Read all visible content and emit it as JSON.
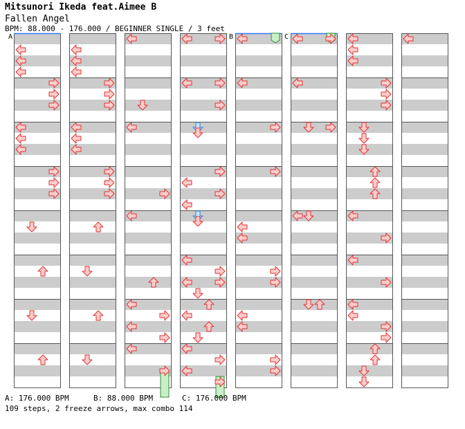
{
  "header": {
    "artist": "Mitsunori Ikeda feat.Aimee B",
    "title": "Fallen Angel",
    "info": "BPM: 88.000 - 176.000 / BEGINNER SINGLE / 3 feet"
  },
  "markers": [
    "A",
    "B",
    "C"
  ],
  "footer": {
    "bpm_a": "A: 176.000 BPM",
    "bpm_b": "B: 88.000 BPM",
    "bpm_c": "C: 176.000 BPM",
    "summary": "109 steps, 2 freeze arrows, max combo 114"
  },
  "colors": {
    "stripe_dark": "#cccccc",
    "arrow_red_fill": "#ffcccc",
    "arrow_red_stroke": "#dd3333",
    "arrow_blue_fill": "#cce4ff",
    "arrow_blue_stroke": "#2f7fdd",
    "freeze_fill": "#c8f0c8",
    "freeze_stroke": "#338833",
    "bpm_line": "#3377ff"
  },
  "chart_data": {
    "type": "step-chart",
    "measures_per_column": 8,
    "columns": 8,
    "arrows_note": "each arrow: measure index, beat position (0-4), lane (L,D,U,R), color",
    "arrows": [
      {
        "m": 0,
        "b": 1,
        "lane": "L"
      },
      {
        "m": 0,
        "b": 2,
        "lane": "L"
      },
      {
        "m": 0,
        "b": 3,
        "lane": "L"
      },
      {
        "m": 1,
        "b": 0,
        "lane": "R"
      },
      {
        "m": 1,
        "b": 1,
        "lane": "R"
      },
      {
        "m": 1,
        "b": 2,
        "lane": "R"
      },
      {
        "m": 2,
        "b": 0,
        "lane": "L"
      },
      {
        "m": 2,
        "b": 1,
        "lane": "L"
      },
      {
        "m": 2,
        "b": 2,
        "lane": "L"
      },
      {
        "m": 3,
        "b": 0,
        "lane": "R"
      },
      {
        "m": 3,
        "b": 1,
        "lane": "R"
      },
      {
        "m": 3,
        "b": 2,
        "lane": "R"
      },
      {
        "m": 4,
        "b": 1,
        "lane": "D"
      },
      {
        "m": 5,
        "b": 1,
        "lane": "U"
      },
      {
        "m": 6,
        "b": 1,
        "lane": "D"
      },
      {
        "m": 7,
        "b": 1,
        "lane": "U"
      },
      {
        "m": 8,
        "b": 1,
        "lane": "L"
      },
      {
        "m": 8,
        "b": 2,
        "lane": "L"
      },
      {
        "m": 8,
        "b": 3,
        "lane": "L"
      },
      {
        "m": 9,
        "b": 0,
        "lane": "R"
      },
      {
        "m": 9,
        "b": 1,
        "lane": "R"
      },
      {
        "m": 9,
        "b": 2,
        "lane": "R"
      },
      {
        "m": 10,
        "b": 0,
        "lane": "L"
      },
      {
        "m": 10,
        "b": 1,
        "lane": "L"
      },
      {
        "m": 10,
        "b": 2,
        "lane": "L"
      },
      {
        "m": 11,
        "b": 0,
        "lane": "R"
      },
      {
        "m": 11,
        "b": 1,
        "lane": "R"
      },
      {
        "m": 11,
        "b": 2,
        "lane": "R"
      },
      {
        "m": 12,
        "b": 1,
        "lane": "U"
      },
      {
        "m": 13,
        "b": 1,
        "lane": "D"
      },
      {
        "m": 14,
        "b": 1,
        "lane": "U"
      },
      {
        "m": 15,
        "b": 1,
        "lane": "D"
      },
      {
        "m": 16,
        "b": 0,
        "lane": "L"
      },
      {
        "m": 17,
        "b": 2,
        "lane": "D"
      },
      {
        "m": 18,
        "b": 0,
        "lane": "L"
      },
      {
        "m": 19,
        "b": 2,
        "lane": "R"
      },
      {
        "m": 20,
        "b": 0,
        "lane": "L"
      },
      {
        "m": 21,
        "b": 2,
        "lane": "U"
      },
      {
        "m": 22,
        "b": 0,
        "lane": "L"
      },
      {
        "m": 22,
        "b": 1,
        "lane": "R"
      },
      {
        "m": 22,
        "b": 2,
        "lane": "L"
      },
      {
        "m": 22,
        "b": 3,
        "lane": "R"
      },
      {
        "m": 23,
        "b": 0,
        "lane": "L"
      },
      {
        "m": 23,
        "b": 2,
        "lane": "R"
      },
      {
        "m": 24,
        "b": 0,
        "lane": "L"
      },
      {
        "m": 24,
        "b": 0,
        "lane": "R"
      },
      {
        "m": 25,
        "b": 0,
        "lane": "L"
      },
      {
        "m": 25,
        "b": 0,
        "lane": "R"
      },
      {
        "m": 25,
        "b": 2,
        "lane": "R"
      },
      {
        "m": 26,
        "b": 0,
        "lane": "D",
        "color": "blue"
      },
      {
        "m": 26,
        "b": 0.5,
        "lane": "D"
      },
      {
        "m": 27,
        "b": 0,
        "lane": "R"
      },
      {
        "m": 27,
        "b": 1,
        "lane": "L"
      },
      {
        "m": 27,
        "b": 2,
        "lane": "R"
      },
      {
        "m": 27,
        "b": 3,
        "lane": "L"
      },
      {
        "m": 28,
        "b": 0,
        "lane": "D",
        "color": "blue"
      },
      {
        "m": 28,
        "b": 0.5,
        "lane": "D"
      },
      {
        "m": 29,
        "b": 0,
        "lane": "L"
      },
      {
        "m": 29,
        "b": 1,
        "lane": "R"
      },
      {
        "m": 29,
        "b": 2,
        "lane": "L"
      },
      {
        "m": 29,
        "b": 2,
        "lane": "R"
      },
      {
        "m": 29,
        "b": 3,
        "lane": "D"
      },
      {
        "m": 30,
        "b": 0,
        "lane": "U"
      },
      {
        "m": 30,
        "b": 1,
        "lane": "L"
      },
      {
        "m": 30,
        "b": 2,
        "lane": "U"
      },
      {
        "m": 30,
        "b": 3,
        "lane": "D"
      },
      {
        "m": 31,
        "b": 0,
        "lane": "L"
      },
      {
        "m": 31,
        "b": 1,
        "lane": "R"
      },
      {
        "m": 31,
        "b": 2,
        "lane": "L"
      },
      {
        "m": 31,
        "b": 3,
        "lane": "R"
      },
      {
        "m": 32,
        "b": 0,
        "lane": "L"
      },
      {
        "m": 33,
        "b": 0,
        "lane": "L"
      },
      {
        "m": 34,
        "b": 0,
        "lane": "R"
      },
      {
        "m": 35,
        "b": 0,
        "lane": "R"
      },
      {
        "m": 36,
        "b": 1,
        "lane": "L"
      },
      {
        "m": 36,
        "b": 2,
        "lane": "L"
      },
      {
        "m": 37,
        "b": 1,
        "lane": "R"
      },
      {
        "m": 37,
        "b": 2,
        "lane": "R"
      },
      {
        "m": 38,
        "b": 1,
        "lane": "L"
      },
      {
        "m": 38,
        "b": 2,
        "lane": "L"
      },
      {
        "m": 39,
        "b": 1,
        "lane": "R"
      },
      {
        "m": 39,
        "b": 2,
        "lane": "R"
      },
      {
        "m": 40,
        "b": 0,
        "lane": "L"
      },
      {
        "m": 40,
        "b": 0,
        "lane": "R"
      },
      {
        "m": 41,
        "b": 0,
        "lane": "L"
      },
      {
        "m": 42,
        "b": 0,
        "lane": "D"
      },
      {
        "m": 42,
        "b": 0,
        "lane": "R"
      },
      {
        "m": 44,
        "b": 0,
        "lane": "L"
      },
      {
        "m": 44,
        "b": 0,
        "lane": "D"
      },
      {
        "m": 46,
        "b": 0,
        "lane": "D"
      },
      {
        "m": 46,
        "b": 0,
        "lane": "U"
      },
      {
        "m": 48,
        "b": 0,
        "lane": "L"
      },
      {
        "m": 48,
        "b": 1,
        "lane": "L"
      },
      {
        "m": 48,
        "b": 2,
        "lane": "L"
      },
      {
        "m": 49,
        "b": 0,
        "lane": "R"
      },
      {
        "m": 49,
        "b": 1,
        "lane": "R"
      },
      {
        "m": 49,
        "b": 2,
        "lane": "R"
      },
      {
        "m": 50,
        "b": 0,
        "lane": "D"
      },
      {
        "m": 50,
        "b": 1,
        "lane": "D"
      },
      {
        "m": 50,
        "b": 2,
        "lane": "D"
      },
      {
        "m": 51,
        "b": 0,
        "lane": "U"
      },
      {
        "m": 51,
        "b": 1,
        "lane": "U"
      },
      {
        "m": 51,
        "b": 2,
        "lane": "U"
      },
      {
        "m": 52,
        "b": 0,
        "lane": "L"
      },
      {
        "m": 52,
        "b": 2,
        "lane": "R"
      },
      {
        "m": 53,
        "b": 0,
        "lane": "L"
      },
      {
        "m": 53,
        "b": 2,
        "lane": "R"
      },
      {
        "m": 54,
        "b": 0,
        "lane": "L"
      },
      {
        "m": 54,
        "b": 1,
        "lane": "L"
      },
      {
        "m": 54,
        "b": 2,
        "lane": "R"
      },
      {
        "m": 54,
        "b": 3,
        "lane": "R"
      },
      {
        "m": 55,
        "b": 0,
        "lane": "U"
      },
      {
        "m": 55,
        "b": 1,
        "lane": "U"
      },
      {
        "m": 55,
        "b": 2,
        "lane": "D"
      },
      {
        "m": 55,
        "b": 3,
        "lane": "D"
      },
      {
        "m": 56,
        "b": 0,
        "lane": "L"
      }
    ],
    "freezes": [
      {
        "m": 23,
        "b": 2.6,
        "m_end": 23,
        "b_end": 4.5,
        "lane": "R",
        "note": "freeze arrow running off bottom of column"
      },
      {
        "m": 31,
        "b": 3,
        "m_end": 31,
        "b_end": 4.5,
        "lane": "R"
      }
    ],
    "freeze_tops": [
      {
        "col": 4,
        "lane": "R"
      },
      {
        "col": 5,
        "lane": "R"
      }
    ],
    "bpm_changes": [
      {
        "col": 0,
        "label": "A"
      },
      {
        "col": 4,
        "label": "B"
      },
      {
        "col": 5,
        "label": "C"
      }
    ]
  }
}
